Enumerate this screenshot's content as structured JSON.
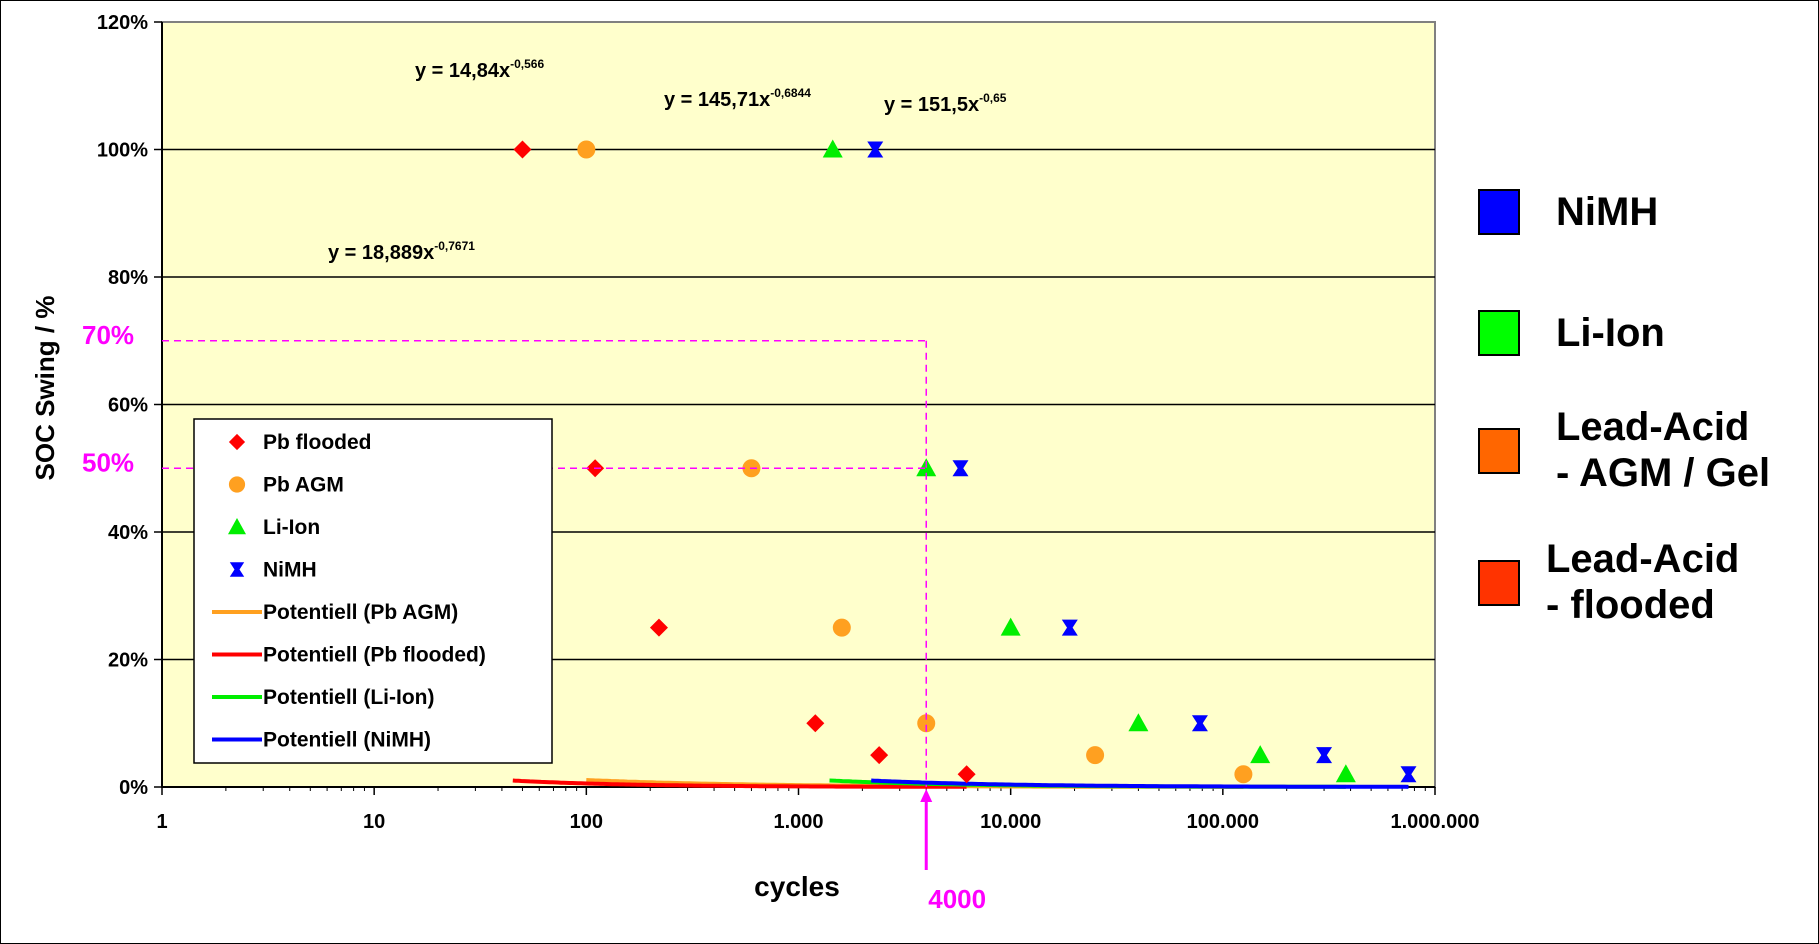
{
  "chart_data": {
    "type": "scatter",
    "xscale": "log",
    "xlabel": "cycles",
    "ylabel": "SOC Swing / %",
    "xlim": [
      1,
      1000000
    ],
    "ylim": [
      0,
      120
    ],
    "xticks": [
      {
        "v": 1,
        "label": "1"
      },
      {
        "v": 10,
        "label": "10"
      },
      {
        "v": 100,
        "label": "100"
      },
      {
        "v": 1000,
        "label": "1.000"
      },
      {
        "v": 10000,
        "label": "10.000"
      },
      {
        "v": 100000,
        "label": "100.000"
      },
      {
        "v": 1000000,
        "label": "1.000.000"
      }
    ],
    "yticks": [
      {
        "v": 0,
        "label": "0%"
      },
      {
        "v": 20,
        "label": "20%"
      },
      {
        "v": 40,
        "label": "40%"
      },
      {
        "v": 60,
        "label": "60%"
      },
      {
        "v": 80,
        "label": "80%"
      },
      {
        "v": 100,
        "label": "100%"
      },
      {
        "v": 120,
        "label": "120%"
      }
    ],
    "grid": "horizontal",
    "plot_background": "#ffffcc",
    "series": [
      {
        "name": "Pb flooded",
        "marker": "diamond",
        "color": "#ff0000",
        "x": [
          50,
          110,
          220,
          1200,
          2400,
          6200
        ],
        "y": [
          100,
          50,
          25,
          10,
          5,
          2
        ]
      },
      {
        "name": "Pb AGM",
        "marker": "circle",
        "color": "#ffa020",
        "x": [
          100,
          600,
          1600,
          4000,
          25000,
          125000
        ],
        "y": [
          100,
          50,
          25,
          10,
          5,
          2
        ]
      },
      {
        "name": "Li-Ion",
        "marker": "triangle",
        "color": "#00ee00",
        "x": [
          1450,
          4000,
          10000,
          40000,
          150000,
          380000
        ],
        "y": [
          100,
          50,
          25,
          10,
          5,
          2
        ]
      },
      {
        "name": "NiMH",
        "marker": "hourglass",
        "color": "#0000ff",
        "x": [
          2300,
          5800,
          19000,
          78000,
          300000,
          750000
        ],
        "y": [
          100,
          50,
          25,
          10,
          5,
          2
        ]
      }
    ],
    "trendlines": [
      {
        "name": "Potentiell (Pb AGM)",
        "color": "#ffa020",
        "a": 14.84,
        "b": -0.566,
        "x_from": 100,
        "x_to": 125000,
        "equation": "y = 14,84x",
        "exponent": "-0,566"
      },
      {
        "name": "Potentiell (Pb flooded)",
        "color": "#ff0000",
        "a": 18.889,
        "b": -0.7671,
        "x_from": 45,
        "x_to": 6200,
        "equation": "y = 18,889x",
        "exponent": "-0,7671"
      },
      {
        "name": "Potentiell (Li-Ion)",
        "color": "#00ee00",
        "a": 145.71,
        "b": -0.6844,
        "x_from": 1400,
        "x_to": 380000,
        "equation": "y = 145,71x",
        "exponent": "-0,6844"
      },
      {
        "name": "Potentiell (NiMH)",
        "color": "#0000ff",
        "a": 151.5,
        "b": -0.65,
        "x_from": 2200,
        "x_to": 750000,
        "equation": "y = 151,5x",
        "exponent": "-0,65"
      }
    ],
    "legend_order": [
      {
        "name": "Pb flooded",
        "kind": "marker",
        "marker": "diamond",
        "color": "#ff0000"
      },
      {
        "name": "Pb AGM",
        "kind": "marker",
        "marker": "circle",
        "color": "#ffa020"
      },
      {
        "name": "Li-Ion",
        "kind": "marker",
        "marker": "triangle",
        "color": "#00ee00"
      },
      {
        "name": "NiMH",
        "kind": "marker",
        "marker": "hourglass",
        "color": "#0000ff"
      },
      {
        "name": "Potentiell (Pb AGM)",
        "kind": "line",
        "color": "#ffa020"
      },
      {
        "name": "Potentiell (Pb flooded)",
        "kind": "line",
        "color": "#ff0000"
      },
      {
        "name": "Potentiell (Li-Ion)",
        "kind": "line",
        "color": "#00ee00"
      },
      {
        "name": "Potentiell (NiMH)",
        "kind": "line",
        "color": "#0000ff"
      }
    ],
    "legend_position": "lower-left",
    "annotations": {
      "color": "#ff00ff",
      "hlines": [
        {
          "y": 70,
          "label": "70%",
          "x_to": 4000
        },
        {
          "y": 50,
          "label": "50%",
          "x_to": 4000
        }
      ],
      "vline": {
        "x": 4000,
        "label": "4000"
      }
    }
  },
  "side_legend": [
    {
      "label": "NiMH",
      "color": "#0000ff"
    },
    {
      "label": "Li-Ion",
      "color": "#00ff00"
    },
    {
      "label": "Lead-Acid\n- AGM / Gel",
      "color": "#ff6600"
    },
    {
      "label": "Lead-Acid\n- flooded",
      "color": "#ff3300"
    }
  ]
}
